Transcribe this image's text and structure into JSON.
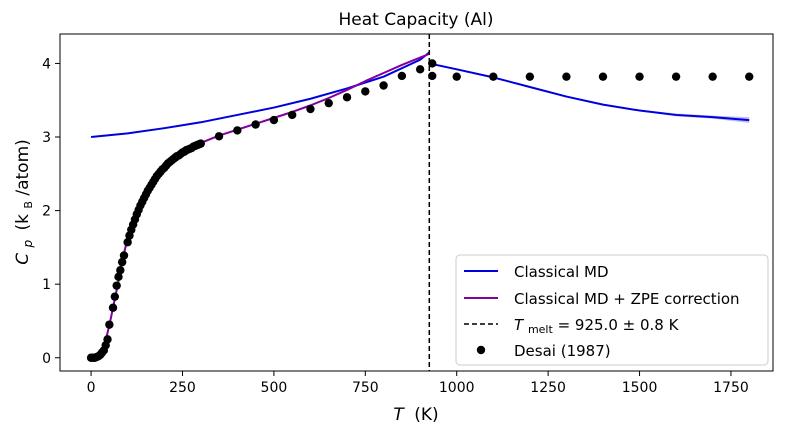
{
  "chart_data": {
    "type": "line",
    "title": "Heat Capacity (Al)",
    "xlabel": {
      "main": "T",
      "unit": "(K)"
    },
    "ylabel": {
      "main": "C",
      "sub": "p",
      "unit_open": "(k",
      "unit_sub": "B",
      "unit_close": "/atom)"
    },
    "xlim": [
      -85,
      1865
    ],
    "ylim": [
      -0.18,
      4.4
    ],
    "xticks": [
      0,
      250,
      500,
      750,
      1000,
      1250,
      1500,
      1750
    ],
    "yticks": [
      0,
      1,
      2,
      3,
      4
    ],
    "legend": {
      "position": "bottom-right",
      "entries": [
        {
          "key": "classical",
          "label": "Classical MD"
        },
        {
          "key": "zpe",
          "label": "Classical MD + ZPE correction"
        },
        {
          "key": "melt",
          "label_prefix": "T",
          "label_sub": "melt",
          "label_suffix": " = 925.0 ± 0.8 K"
        },
        {
          "key": "desai",
          "label": "Desai (1987)"
        }
      ]
    },
    "series": [
      {
        "name": "Classical MD",
        "color": "#0000dd",
        "x": [
          0,
          100,
          200,
          300,
          400,
          500,
          600,
          700,
          800,
          900,
          925
        ],
        "y": [
          3.0,
          3.05,
          3.12,
          3.2,
          3.3,
          3.4,
          3.52,
          3.66,
          3.82,
          4.05,
          4.15
        ]
      },
      {
        "name": "Classical MD (liquid)",
        "color": "#0000dd",
        "x": [
          925,
          1000,
          1100,
          1200,
          1300,
          1400,
          1500,
          1600,
          1700,
          1800
        ],
        "y": [
          4.0,
          3.92,
          3.81,
          3.68,
          3.55,
          3.44,
          3.36,
          3.3,
          3.27,
          3.23
        ],
        "band_upper": [
          4.01,
          3.93,
          3.82,
          3.69,
          3.56,
          3.45,
          3.37,
          3.32,
          3.29,
          3.27
        ],
        "band_lower": [
          3.99,
          3.91,
          3.8,
          3.67,
          3.54,
          3.43,
          3.35,
          3.28,
          3.25,
          3.19
        ]
      },
      {
        "name": "Classical MD + ZPE correction",
        "color": "#8000a0",
        "x": [
          0,
          10,
          20,
          30,
          40,
          50,
          60,
          70,
          80,
          90,
          100,
          120,
          140,
          160,
          180,
          200,
          220,
          240,
          260,
          280,
          300,
          350,
          400,
          450,
          500,
          550,
          600,
          650,
          700,
          750,
          800,
          850,
          900,
          925
        ],
        "y": [
          0,
          0.0,
          0.02,
          0.09,
          0.24,
          0.44,
          0.68,
          0.92,
          1.18,
          1.42,
          1.62,
          1.92,
          2.15,
          2.33,
          2.47,
          2.58,
          2.67,
          2.75,
          2.82,
          2.87,
          2.92,
          3.02,
          3.1,
          3.18,
          3.26,
          3.34,
          3.43,
          3.53,
          3.64,
          3.76,
          3.87,
          3.98,
          4.08,
          4.13
        ]
      },
      {
        "name": "Desai (1987)",
        "color": "#000000",
        "marker": "dot",
        "x": [
          0,
          5,
          10,
          15,
          20,
          25,
          30,
          35,
          40,
          45,
          50,
          60,
          65,
          70,
          75,
          80,
          85,
          90,
          100,
          105,
          110,
          115,
          120,
          125,
          130,
          135,
          140,
          145,
          150,
          155,
          160,
          165,
          170,
          175,
          180,
          185,
          190,
          195,
          200,
          205,
          210,
          215,
          220,
          225,
          230,
          235,
          240,
          245,
          250,
          255,
          260,
          265,
          270,
          275,
          280,
          285,
          290,
          295,
          300,
          350,
          400,
          450,
          500,
          550,
          600,
          650,
          700,
          750,
          800,
          850,
          900,
          933,
          933,
          1000,
          1100,
          1200,
          1300,
          1400,
          1500,
          1600,
          1700,
          1800
        ],
        "y": [
          0,
          0.0,
          0.0,
          0.01,
          0.02,
          0.04,
          0.07,
          0.1,
          0.17,
          0.25,
          0.45,
          0.68,
          0.83,
          0.98,
          1.1,
          1.19,
          1.3,
          1.39,
          1.57,
          1.66,
          1.74,
          1.81,
          1.88,
          1.95,
          2.01,
          2.07,
          2.12,
          2.17,
          2.22,
          2.27,
          2.31,
          2.35,
          2.39,
          2.43,
          2.47,
          2.5,
          2.53,
          2.56,
          2.58,
          2.61,
          2.64,
          2.66,
          2.68,
          2.7,
          2.72,
          2.74,
          2.75,
          2.77,
          2.79,
          2.8,
          2.82,
          2.83,
          2.84,
          2.85,
          2.87,
          2.88,
          2.89,
          2.9,
          2.91,
          3.01,
          3.09,
          3.17,
          3.23,
          3.3,
          3.38,
          3.46,
          3.54,
          3.62,
          3.7,
          3.83,
          3.92,
          4.0,
          3.83,
          3.82,
          3.82,
          3.82,
          3.82,
          3.82,
          3.82,
          3.82,
          3.82,
          3.82
        ]
      }
    ],
    "vline": {
      "x": 925.0,
      "style": "dashed",
      "color": "#000000"
    }
  }
}
